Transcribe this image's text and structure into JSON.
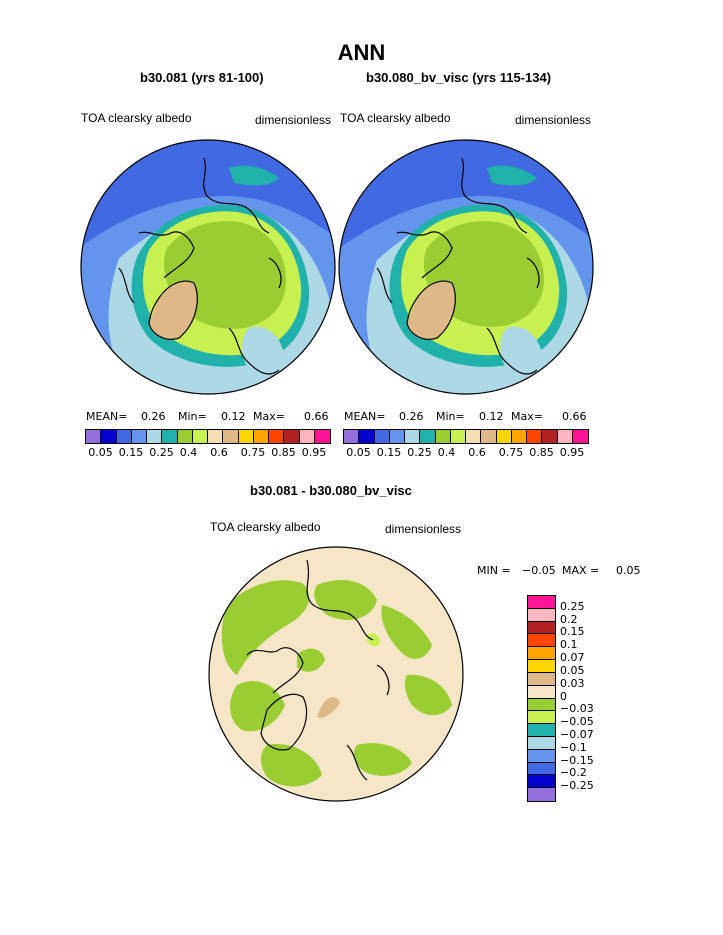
{
  "page": {
    "season": "ANN"
  },
  "panel1": {
    "case_title": "b30.081 (yrs 81-100)",
    "variable": "TOA clearsky albedo",
    "units": "dimensionless",
    "mean_label": "MEAN=",
    "mean_value": "0.26",
    "min_label": "Min=",
    "min_value": "0.12",
    "max_label": "Max=",
    "max_value": "0.66"
  },
  "panel2": {
    "case_title": "b30.080_bv_visc (yrs 115-134)",
    "variable": "TOA clearsky albedo",
    "units": "dimensionless",
    "mean_label": "MEAN=",
    "mean_value": "0.26",
    "min_label": "Min=",
    "min_value": "0.12",
    "max_label": "Max=",
    "max_value": "0.66"
  },
  "panel3": {
    "case_title": "b30.081 - b30.080_bv_visc",
    "variable": "TOA clearsky albedo",
    "units": "dimensionless",
    "min_label": "MIN =",
    "min_value": "−0.05",
    "max_label": "MAX =",
    "max_value": "0.05"
  },
  "colorbar_top": {
    "colors": [
      "#9370db",
      "#0000cd",
      "#4169e1",
      "#6495ed",
      "#add8e6",
      "#20b2aa",
      "#9acd32",
      "#c8f050",
      "#f5deb3",
      "#deb887",
      "#ffd700",
      "#ffa500",
      "#ff4500",
      "#b22222",
      "#ffb6c1",
      "#ff1493"
    ],
    "tick_labels": [
      "0.05",
      "0.15",
      "0.25",
      "0.4",
      "0.6",
      "0.75",
      "0.85",
      "0.95"
    ]
  },
  "colorbar_diff": {
    "colors": [
      "#ff1493",
      "#ffb6c1",
      "#b22222",
      "#ff4500",
      "#ffa500",
      "#ffd700",
      "#deb887",
      "#f5e6c8",
      "#9acd32",
      "#c8f050",
      "#20b2aa",
      "#add8e6",
      "#6495ed",
      "#4169e1",
      "#0000cd",
      "#9370db"
    ],
    "tick_labels": [
      "0.25",
      "0.2",
      "0.15",
      "0.1",
      "0.07",
      "0.05",
      "0.03",
      "0",
      "−0.03",
      "−0.05",
      "−0.07",
      "−0.1",
      "−0.15",
      "−0.2",
      "−0.25"
    ]
  }
}
